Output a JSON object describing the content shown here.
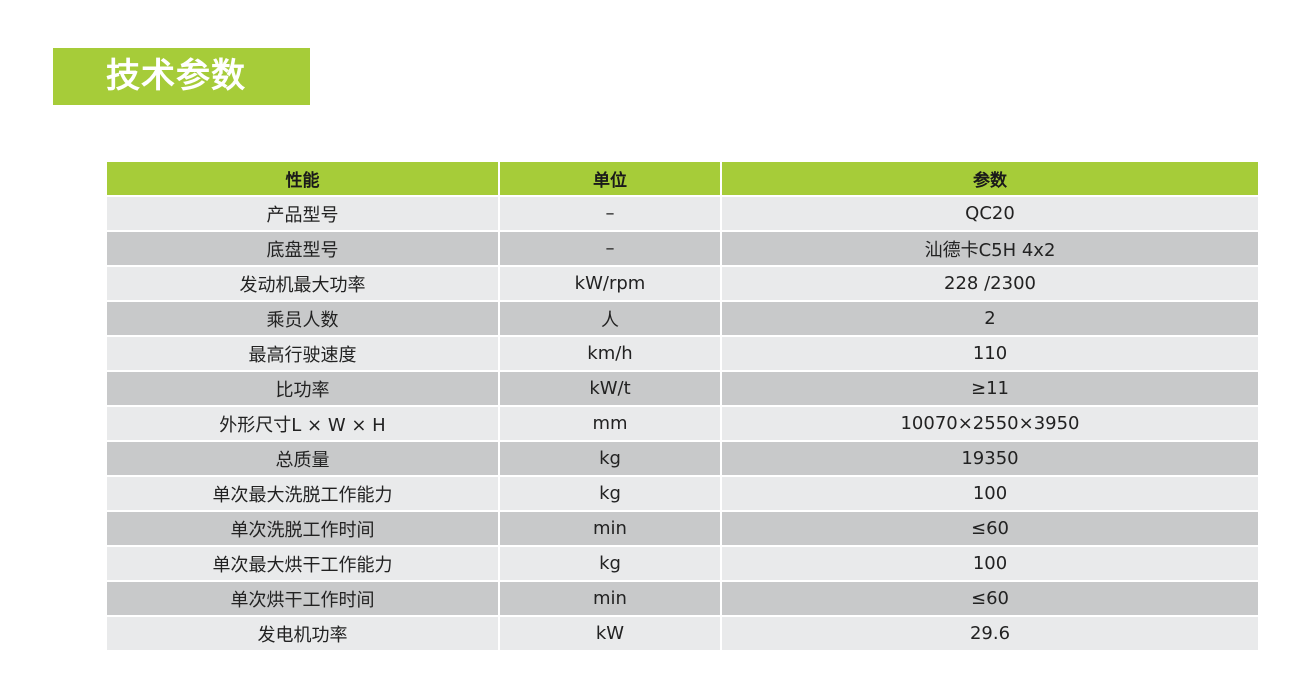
{
  "title": "技术参数",
  "colors": {
    "accent": "#a6cc39",
    "row_light": "#e9eaeb",
    "row_dark": "#c8c9ca"
  },
  "headers": [
    "性能",
    "单位",
    "参数"
  ],
  "rows": [
    [
      "产品型号",
      "–",
      "QC20"
    ],
    [
      "底盘型号",
      "–",
      "汕德卡C5H 4x2"
    ],
    [
      "发动机最大功率",
      "kW/rpm",
      "228 /2300"
    ],
    [
      "乘员人数",
      "人",
      "2"
    ],
    [
      "最高行驶速度",
      "km/h",
      "110"
    ],
    [
      "比功率",
      "kW/t",
      "≥11"
    ],
    [
      "外形尺寸L × W × H",
      "mm",
      "10070×2550×3950"
    ],
    [
      "总质量",
      "kg",
      "19350"
    ],
    [
      "单次最大洗脱工作能力",
      "kg",
      "100"
    ],
    [
      "单次洗脱工作时间",
      "min",
      "≤60"
    ],
    [
      "单次最大烘干工作能力",
      "kg",
      "100"
    ],
    [
      "单次烘干工作时间",
      "min",
      "≤60"
    ],
    [
      "发电机功率",
      "kW",
      "29.6"
    ]
  ]
}
